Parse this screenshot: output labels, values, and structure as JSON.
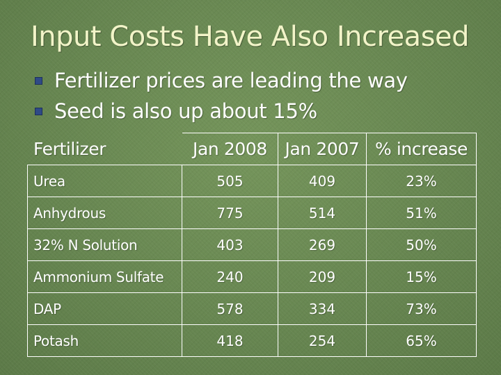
{
  "slide": {
    "title": "Input Costs Have Also Increased",
    "bullets": [
      "Fertilizer prices are leading the way",
      "Seed is also up about 15%"
    ]
  },
  "table": {
    "headers": [
      "Fertilizer",
      "Jan 2008",
      "Jan 2007",
      "% increase"
    ],
    "rows": [
      [
        "Urea",
        "505",
        "409",
        "23%"
      ],
      [
        "Anhydrous",
        "775",
        "514",
        "51%"
      ],
      [
        "32% N Solution",
        "403",
        "269",
        "50%"
      ],
      [
        "Ammonium Sulfate",
        "240",
        "209",
        "15%"
      ],
      [
        "DAP",
        "578",
        "334",
        "73%"
      ],
      [
        "Potash",
        "418",
        "254",
        "65%"
      ]
    ]
  },
  "colors": {
    "background": "#6b8a52",
    "title": "#f2f4c8",
    "text": "#ffffff",
    "bullet": "#2f4a86"
  }
}
